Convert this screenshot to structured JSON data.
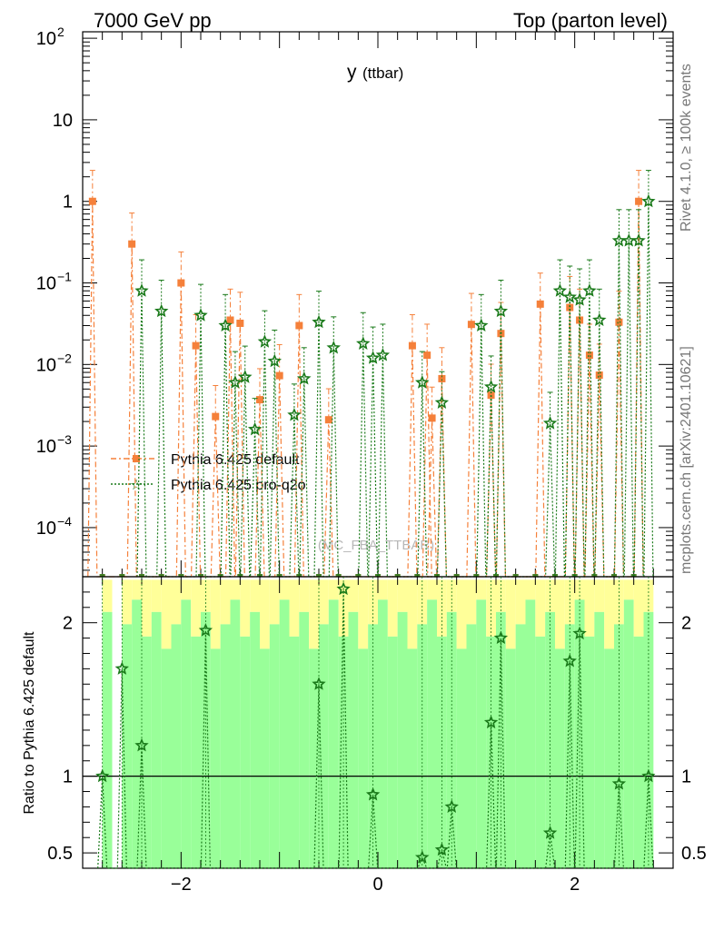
{
  "chart_data": {
    "type": "scatter",
    "header": {
      "left": "7000 GeV pp",
      "right": "Top (parton level)"
    },
    "title_main": "y",
    "title_sub": "(ttbar)",
    "watermark": "(MC_FBA_TTBAR)",
    "side_text_top": "Rivet 4.1.0, ≥ 100k events",
    "side_text_bottom": "mcplots.cern.ch [arXiv:2401.10621]",
    "ratio_ylabel": "Ratio to Pythia 6.425 default",
    "xlim": [
      -3.0,
      3.0
    ],
    "ylim_main": [
      2.5e-05,
      120
    ],
    "ylim_ratio": [
      0.4,
      2.3
    ],
    "xticks": [
      {
        "v": -2,
        "label": "−2"
      },
      {
        "v": 0,
        "label": "0"
      },
      {
        "v": 2,
        "label": "2"
      }
    ],
    "yticks_main": [
      {
        "v": 0.0001,
        "base": "10",
        "exp": "−4"
      },
      {
        "v": 0.001,
        "base": "10",
        "exp": "−3"
      },
      {
        "v": 0.01,
        "base": "10",
        "exp": "−2"
      },
      {
        "v": 0.1,
        "base": "10",
        "exp": "−1"
      },
      {
        "v": 1,
        "base": "1",
        "exp": ""
      },
      {
        "v": 10,
        "base": "10",
        "exp": ""
      },
      {
        "v": 100,
        "base": "10",
        "exp": "2"
      }
    ],
    "yticks_ratio": [
      {
        "v": 0.5,
        "label": "0.5"
      },
      {
        "v": 1,
        "label": "1"
      },
      {
        "v": 2,
        "label": "2"
      }
    ],
    "series": [
      {
        "name": "Pythia 6.425 default",
        "color": "#f5803a",
        "marker": "square",
        "x": [
          -2.9,
          -2.5,
          -2.0,
          -1.85,
          -1.65,
          -1.5,
          -1.4,
          -1.2,
          -1.0,
          -0.8,
          -0.5,
          0.35,
          0.5,
          0.55,
          0.65,
          0.95,
          1.15,
          1.25,
          1.65,
          1.95,
          2.05,
          2.15,
          2.25,
          2.45,
          2.65
        ],
        "y": [
          1.0,
          0.3,
          0.1,
          0.017,
          0.0023,
          0.035,
          0.032,
          0.0037,
          0.0073,
          0.03,
          0.0021,
          0.017,
          0.013,
          0.0022,
          0.0067,
          0.031,
          0.0042,
          0.024,
          0.055,
          0.05,
          0.035,
          0.013,
          0.0074,
          0.033,
          1.0
        ]
      },
      {
        "name": "Pythia 6.425 pro-q2o",
        "color": "#1a7a1a",
        "marker": "star",
        "x": [
          -2.4,
          -2.2,
          -1.8,
          -1.55,
          -1.45,
          -1.35,
          -1.25,
          -1.15,
          -1.05,
          -0.85,
          -0.75,
          -0.6,
          -0.45,
          -0.15,
          -0.05,
          0.05,
          0.45,
          0.65,
          1.05,
          1.15,
          1.25,
          1.75,
          1.85,
          1.95,
          2.05,
          2.15,
          2.25,
          2.45,
          2.55,
          2.65,
          2.75
        ],
        "y": [
          0.08,
          0.045,
          0.04,
          0.03,
          0.006,
          0.007,
          0.0016,
          0.019,
          0.011,
          0.0024,
          0.0067,
          0.033,
          0.016,
          0.018,
          0.012,
          0.013,
          0.006,
          0.0034,
          0.03,
          0.0053,
          0.045,
          0.0019,
          0.08,
          0.067,
          0.062,
          0.08,
          0.035,
          0.33,
          0.33,
          0.33,
          1.0
        ]
      }
    ],
    "ratio_series": {
      "name": "Pythia 6.425 pro-q2o",
      "x": [
        -2.8,
        -2.6,
        -2.4,
        -1.75,
        -0.6,
        -0.35,
        -0.05,
        0.45,
        0.65,
        0.75,
        1.15,
        1.25,
        1.75,
        1.95,
        2.05,
        2.45,
        2.75
      ],
      "y": [
        1.0,
        1.7,
        1.2,
        1.95,
        1.6,
        2.22,
        0.88,
        0.47,
        0.52,
        0.8,
        1.35,
        1.9,
        0.63,
        1.75,
        1.93,
        0.95,
        1.0
      ]
    }
  }
}
